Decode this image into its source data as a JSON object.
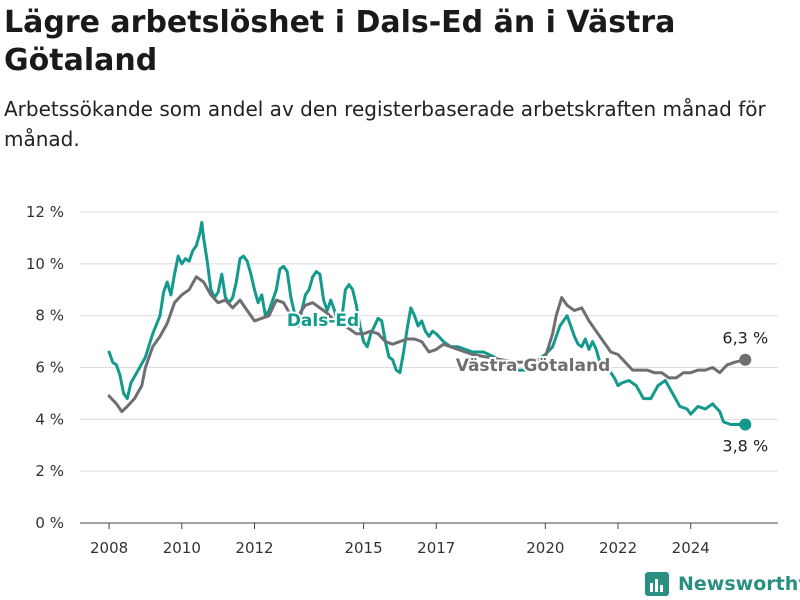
{
  "title": "Lägre arbetslöshet i Dals-Ed än i Västra Götaland",
  "subtitle": "Arbetssökande som andel av den registerbaserade arbetskraften månad för månad.",
  "brand": "Newsworthy",
  "colors": {
    "dals_ed": "#139a8d",
    "vastra_gotaland": "#6e6e73",
    "grid": "#dddddd",
    "brand": "#2a8f80"
  },
  "chart_data": {
    "type": "line",
    "title": "Lägre arbetslöshet i Dals-Ed än i Västra Götaland",
    "ylim": [
      0,
      12
    ],
    "y_ticks": [
      "0 %",
      "2 %",
      "4 %",
      "6 %",
      "8 %",
      "10 %",
      "12 %"
    ],
    "x_ticks": [
      "2008",
      "2010",
      "2012",
      "2015",
      "2017",
      "2020",
      "2022",
      "2024"
    ],
    "x_tick_values": [
      2008,
      2010,
      2012,
      2015,
      2017,
      2020,
      2022,
      2024
    ],
    "grid": true,
    "series": [
      {
        "name": "Dals-Ed",
        "end_label": "3,8 %",
        "points": [
          [
            2008.0,
            6.6
          ],
          [
            2008.1,
            6.2
          ],
          [
            2008.2,
            6.1
          ],
          [
            2008.3,
            5.7
          ],
          [
            2008.4,
            5.0
          ],
          [
            2008.5,
            4.8
          ],
          [
            2008.6,
            5.4
          ],
          [
            2008.8,
            5.9
          ],
          [
            2009.0,
            6.4
          ],
          [
            2009.2,
            7.3
          ],
          [
            2009.4,
            8.0
          ],
          [
            2009.5,
            8.9
          ],
          [
            2009.6,
            9.3
          ],
          [
            2009.7,
            8.8
          ],
          [
            2009.8,
            9.6
          ],
          [
            2009.9,
            10.3
          ],
          [
            2010.0,
            10.0
          ],
          [
            2010.1,
            10.2
          ],
          [
            2010.2,
            10.1
          ],
          [
            2010.3,
            10.5
          ],
          [
            2010.4,
            10.7
          ],
          [
            2010.5,
            11.2
          ],
          [
            2010.55,
            11.6
          ],
          [
            2010.6,
            11.0
          ],
          [
            2010.7,
            10.1
          ],
          [
            2010.8,
            9.0
          ],
          [
            2010.9,
            8.7
          ],
          [
            2011.0,
            8.9
          ],
          [
            2011.1,
            9.6
          ],
          [
            2011.2,
            8.7
          ],
          [
            2011.3,
            8.5
          ],
          [
            2011.4,
            8.7
          ],
          [
            2011.5,
            9.3
          ],
          [
            2011.6,
            10.2
          ],
          [
            2011.7,
            10.3
          ],
          [
            2011.8,
            10.1
          ],
          [
            2011.9,
            9.6
          ],
          [
            2012.0,
            9.0
          ],
          [
            2012.1,
            8.5
          ],
          [
            2012.2,
            8.8
          ],
          [
            2012.3,
            8.0
          ],
          [
            2012.4,
            8.2
          ],
          [
            2012.5,
            8.6
          ],
          [
            2012.6,
            9.0
          ],
          [
            2012.7,
            9.8
          ],
          [
            2012.8,
            9.9
          ],
          [
            2012.9,
            9.7
          ],
          [
            2013.0,
            8.7
          ],
          [
            2013.1,
            8.1
          ],
          [
            2013.2,
            7.6
          ],
          [
            2013.3,
            8.2
          ],
          [
            2013.4,
            8.8
          ],
          [
            2013.5,
            9.0
          ],
          [
            2013.6,
            9.5
          ],
          [
            2013.7,
            9.7
          ],
          [
            2013.8,
            9.6
          ],
          [
            2013.9,
            8.6
          ],
          [
            2014.0,
            8.2
          ],
          [
            2014.1,
            8.6
          ],
          [
            2014.2,
            8.2
          ],
          [
            2014.3,
            7.7
          ],
          [
            2014.4,
            7.9
          ],
          [
            2014.5,
            9.0
          ],
          [
            2014.6,
            9.2
          ],
          [
            2014.7,
            9.0
          ],
          [
            2014.8,
            8.4
          ],
          [
            2014.9,
            7.6
          ],
          [
            2015.0,
            7.0
          ],
          [
            2015.1,
            6.8
          ],
          [
            2015.2,
            7.3
          ],
          [
            2015.3,
            7.6
          ],
          [
            2015.4,
            7.9
          ],
          [
            2015.5,
            7.8
          ],
          [
            2015.6,
            7.0
          ],
          [
            2015.7,
            6.4
          ],
          [
            2015.8,
            6.3
          ],
          [
            2015.9,
            5.9
          ],
          [
            2016.0,
            5.8
          ],
          [
            2016.1,
            6.6
          ],
          [
            2016.2,
            7.5
          ],
          [
            2016.3,
            8.3
          ],
          [
            2016.4,
            8.0
          ],
          [
            2016.5,
            7.6
          ],
          [
            2016.6,
            7.8
          ],
          [
            2016.7,
            7.4
          ],
          [
            2016.8,
            7.2
          ],
          [
            2016.9,
            7.4
          ],
          [
            2017.0,
            7.3
          ],
          [
            2017.2,
            7.0
          ],
          [
            2017.4,
            6.8
          ],
          [
            2017.6,
            6.8
          ],
          [
            2017.8,
            6.7
          ],
          [
            2018.0,
            6.6
          ],
          [
            2018.3,
            6.6
          ],
          [
            2018.6,
            6.4
          ],
          [
            2018.9,
            6.1
          ],
          [
            2019.2,
            5.9
          ],
          [
            2019.5,
            5.9
          ],
          [
            2019.8,
            6.3
          ],
          [
            2020.0,
            6.5
          ],
          [
            2020.2,
            6.8
          ],
          [
            2020.4,
            7.6
          ],
          [
            2020.6,
            8.0
          ],
          [
            2020.7,
            7.6
          ],
          [
            2020.8,
            7.2
          ],
          [
            2020.9,
            6.9
          ],
          [
            2021.0,
            6.8
          ],
          [
            2021.1,
            7.1
          ],
          [
            2021.2,
            6.7
          ],
          [
            2021.3,
            7.0
          ],
          [
            2021.4,
            6.7
          ],
          [
            2021.5,
            6.2
          ],
          [
            2021.7,
            6.0
          ],
          [
            2021.9,
            5.6
          ],
          [
            2022.0,
            5.3
          ],
          [
            2022.1,
            5.4
          ],
          [
            2022.3,
            5.5
          ],
          [
            2022.5,
            5.3
          ],
          [
            2022.7,
            4.8
          ],
          [
            2022.9,
            4.8
          ],
          [
            2023.1,
            5.3
          ],
          [
            2023.3,
            5.5
          ],
          [
            2023.5,
            5.0
          ],
          [
            2023.7,
            4.5
          ],
          [
            2023.9,
            4.4
          ],
          [
            2024.0,
            4.2
          ],
          [
            2024.2,
            4.5
          ],
          [
            2024.4,
            4.4
          ],
          [
            2024.6,
            4.6
          ],
          [
            2024.8,
            4.3
          ],
          [
            2024.9,
            3.9
          ],
          [
            2025.1,
            3.8
          ],
          [
            2025.4,
            3.8
          ],
          [
            2025.5,
            3.8
          ]
        ]
      },
      {
        "name": "Västra Götaland",
        "end_label": "6,3 %",
        "points": [
          [
            2008.0,
            4.9
          ],
          [
            2008.2,
            4.6
          ],
          [
            2008.35,
            4.3
          ],
          [
            2008.5,
            4.5
          ],
          [
            2008.7,
            4.8
          ],
          [
            2008.9,
            5.3
          ],
          [
            2009.0,
            6.0
          ],
          [
            2009.2,
            6.8
          ],
          [
            2009.4,
            7.2
          ],
          [
            2009.6,
            7.7
          ],
          [
            2009.8,
            8.5
          ],
          [
            2010.0,
            8.8
          ],
          [
            2010.2,
            9.0
          ],
          [
            2010.4,
            9.5
          ],
          [
            2010.6,
            9.3
          ],
          [
            2010.8,
            8.8
          ],
          [
            2011.0,
            8.5
          ],
          [
            2011.2,
            8.6
          ],
          [
            2011.4,
            8.3
          ],
          [
            2011.6,
            8.6
          ],
          [
            2011.8,
            8.2
          ],
          [
            2012.0,
            7.8
          ],
          [
            2012.2,
            7.9
          ],
          [
            2012.4,
            8.0
          ],
          [
            2012.6,
            8.6
          ],
          [
            2012.8,
            8.5
          ],
          [
            2013.0,
            8.0
          ],
          [
            2013.2,
            8.0
          ],
          [
            2013.4,
            8.4
          ],
          [
            2013.6,
            8.5
          ],
          [
            2013.8,
            8.3
          ],
          [
            2014.0,
            8.1
          ],
          [
            2014.2,
            7.8
          ],
          [
            2014.4,
            7.7
          ],
          [
            2014.6,
            7.5
          ],
          [
            2014.8,
            7.3
          ],
          [
            2015.0,
            7.3
          ],
          [
            2015.2,
            7.4
          ],
          [
            2015.4,
            7.3
          ],
          [
            2015.6,
            7.0
          ],
          [
            2015.8,
            6.9
          ],
          [
            2016.0,
            7.0
          ],
          [
            2016.2,
            7.1
          ],
          [
            2016.4,
            7.1
          ],
          [
            2016.6,
            7.0
          ],
          [
            2016.8,
            6.6
          ],
          [
            2017.0,
            6.7
          ],
          [
            2017.2,
            6.9
          ],
          [
            2017.4,
            6.8
          ],
          [
            2017.6,
            6.7
          ],
          [
            2017.8,
            6.6
          ],
          [
            2018.0,
            6.5
          ],
          [
            2018.4,
            6.4
          ],
          [
            2018.8,
            6.3
          ],
          [
            2019.2,
            6.2
          ],
          [
            2019.6,
            6.2
          ],
          [
            2020.0,
            6.4
          ],
          [
            2020.2,
            7.3
          ],
          [
            2020.3,
            8.0
          ],
          [
            2020.45,
            8.7
          ],
          [
            2020.6,
            8.4
          ],
          [
            2020.8,
            8.2
          ],
          [
            2021.0,
            8.3
          ],
          [
            2021.2,
            7.8
          ],
          [
            2021.4,
            7.4
          ],
          [
            2021.6,
            7.0
          ],
          [
            2021.8,
            6.6
          ],
          [
            2022.0,
            6.5
          ],
          [
            2022.2,
            6.2
          ],
          [
            2022.4,
            5.9
          ],
          [
            2022.6,
            5.9
          ],
          [
            2022.8,
            5.9
          ],
          [
            2023.0,
            5.8
          ],
          [
            2023.2,
            5.8
          ],
          [
            2023.4,
            5.6
          ],
          [
            2023.6,
            5.6
          ],
          [
            2023.8,
            5.8
          ],
          [
            2024.0,
            5.8
          ],
          [
            2024.2,
            5.9
          ],
          [
            2024.4,
            5.9
          ],
          [
            2024.6,
            6.0
          ],
          [
            2024.8,
            5.8
          ],
          [
            2025.0,
            6.1
          ],
          [
            2025.2,
            6.2
          ],
          [
            2025.5,
            6.3
          ]
        ]
      }
    ]
  }
}
